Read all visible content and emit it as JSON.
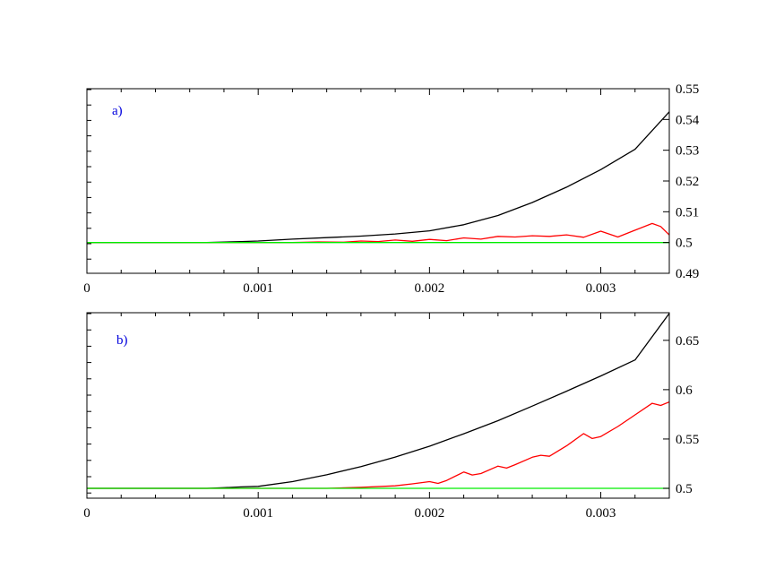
{
  "colors": {
    "black_series": "#000000",
    "red_series": "#ff0000",
    "green_series": "#00ee00",
    "panel_label": "#0000dd"
  },
  "chart_data": [
    {
      "type": "line",
      "panel_label": "a)",
      "xlim": [
        0,
        0.0034
      ],
      "ylim": [
        0.49,
        0.55
      ],
      "y_axis_side": "right",
      "grid": false,
      "x_ticks": [
        {
          "value": 0,
          "label": "0"
        },
        {
          "value": 0.001,
          "label": "0.001"
        },
        {
          "value": 0.002,
          "label": "0.002"
        },
        {
          "value": 0.003,
          "label": "0.003"
        }
      ],
      "y_ticks": [
        {
          "value": 0.49,
          "label": "0.49"
        },
        {
          "value": 0.5,
          "label": "0.5"
        },
        {
          "value": 0.51,
          "label": "0.51"
        },
        {
          "value": 0.52,
          "label": "0.52"
        },
        {
          "value": 0.53,
          "label": "0.53"
        },
        {
          "value": 0.54,
          "label": "0.54"
        },
        {
          "value": 0.55,
          "label": "0.55"
        }
      ],
      "series": [
        {
          "color": "#000000",
          "x": [
            0,
            0.0007,
            0.0009,
            0.001,
            0.0012,
            0.0014,
            0.0016,
            0.0018,
            0.002,
            0.0022,
            0.0024,
            0.0026,
            0.0028,
            0.003,
            0.0032,
            0.0034
          ],
          "y": [
            0.5,
            0.5,
            0.5003,
            0.5005,
            0.5011,
            0.5016,
            0.5021,
            0.5028,
            0.5038,
            0.5058,
            0.5088,
            0.513,
            0.518,
            0.5237,
            0.5303,
            0.5425
          ]
        },
        {
          "color": "#ff0000",
          "x": [
            0,
            0.0012,
            0.00135,
            0.0015,
            0.0016,
            0.0017,
            0.0018,
            0.0019,
            0.002,
            0.0021,
            0.0022,
            0.0023,
            0.0024,
            0.0025,
            0.0026,
            0.0027,
            0.0028,
            0.0029,
            0.003,
            0.0031,
            0.0032,
            0.0033,
            0.00335,
            0.0034
          ],
          "y": [
            0.5,
            0.5,
            0.5002,
            0.5001,
            0.5005,
            0.5003,
            0.5008,
            0.5004,
            0.501,
            0.5006,
            0.5015,
            0.5011,
            0.502,
            0.5018,
            0.5022,
            0.502,
            0.5025,
            0.5017,
            0.5037,
            0.5018,
            0.504,
            0.5062,
            0.5052,
            0.5025
          ]
        },
        {
          "color": "#00ee00",
          "x": [
            0,
            0.0034
          ],
          "y": [
            0.5,
            0.5
          ]
        }
      ]
    },
    {
      "type": "line",
      "panel_label": "b)",
      "xlim": [
        0,
        0.0034
      ],
      "ylim": [
        0.49,
        0.678
      ],
      "y_axis_side": "right",
      "grid": false,
      "x_ticks": [
        {
          "value": 0,
          "label": "0"
        },
        {
          "value": 0.001,
          "label": "0.001"
        },
        {
          "value": 0.002,
          "label": "0.002"
        },
        {
          "value": 0.003,
          "label": "0.003"
        }
      ],
      "y_ticks": [
        {
          "value": 0.5,
          "label": "0.5"
        },
        {
          "value": 0.55,
          "label": "0.55"
        },
        {
          "value": 0.6,
          "label": "0.6"
        },
        {
          "value": 0.65,
          "label": "0.65"
        }
      ],
      "series": [
        {
          "color": "#000000",
          "x": [
            0,
            0.0007,
            0.0008,
            0.0009,
            0.001,
            0.0012,
            0.0014,
            0.0016,
            0.0018,
            0.002,
            0.0022,
            0.0024,
            0.0026,
            0.0028,
            0.003,
            0.0032,
            0.0034
          ],
          "y": [
            0.5,
            0.5,
            0.5006,
            0.5014,
            0.502,
            0.5068,
            0.5137,
            0.5221,
            0.5317,
            0.5427,
            0.5553,
            0.5686,
            0.5834,
            0.5984,
            0.6139,
            0.6301,
            0.6773
          ]
        },
        {
          "color": "#ff0000",
          "x": [
            0,
            0.0014,
            0.0016,
            0.0018,
            0.0019,
            0.002,
            0.00205,
            0.0021,
            0.0022,
            0.00225,
            0.0023,
            0.0024,
            0.00245,
            0.0025,
            0.0026,
            0.00265,
            0.0027,
            0.0028,
            0.0029,
            0.00295,
            0.003,
            0.0031,
            0.0032,
            0.0033,
            0.00335,
            0.0034
          ],
          "y": [
            0.5,
            0.5,
            0.501,
            0.5025,
            0.5045,
            0.5068,
            0.505,
            0.508,
            0.5165,
            0.5135,
            0.515,
            0.5225,
            0.5205,
            0.524,
            0.5315,
            0.5335,
            0.5325,
            0.543,
            0.5555,
            0.5505,
            0.5525,
            0.5627,
            0.5745,
            0.5862,
            0.584,
            0.5875
          ]
        },
        {
          "color": "#00ee00",
          "x": [
            0,
            0.0034
          ],
          "y": [
            0.5,
            0.5
          ]
        }
      ]
    }
  ]
}
